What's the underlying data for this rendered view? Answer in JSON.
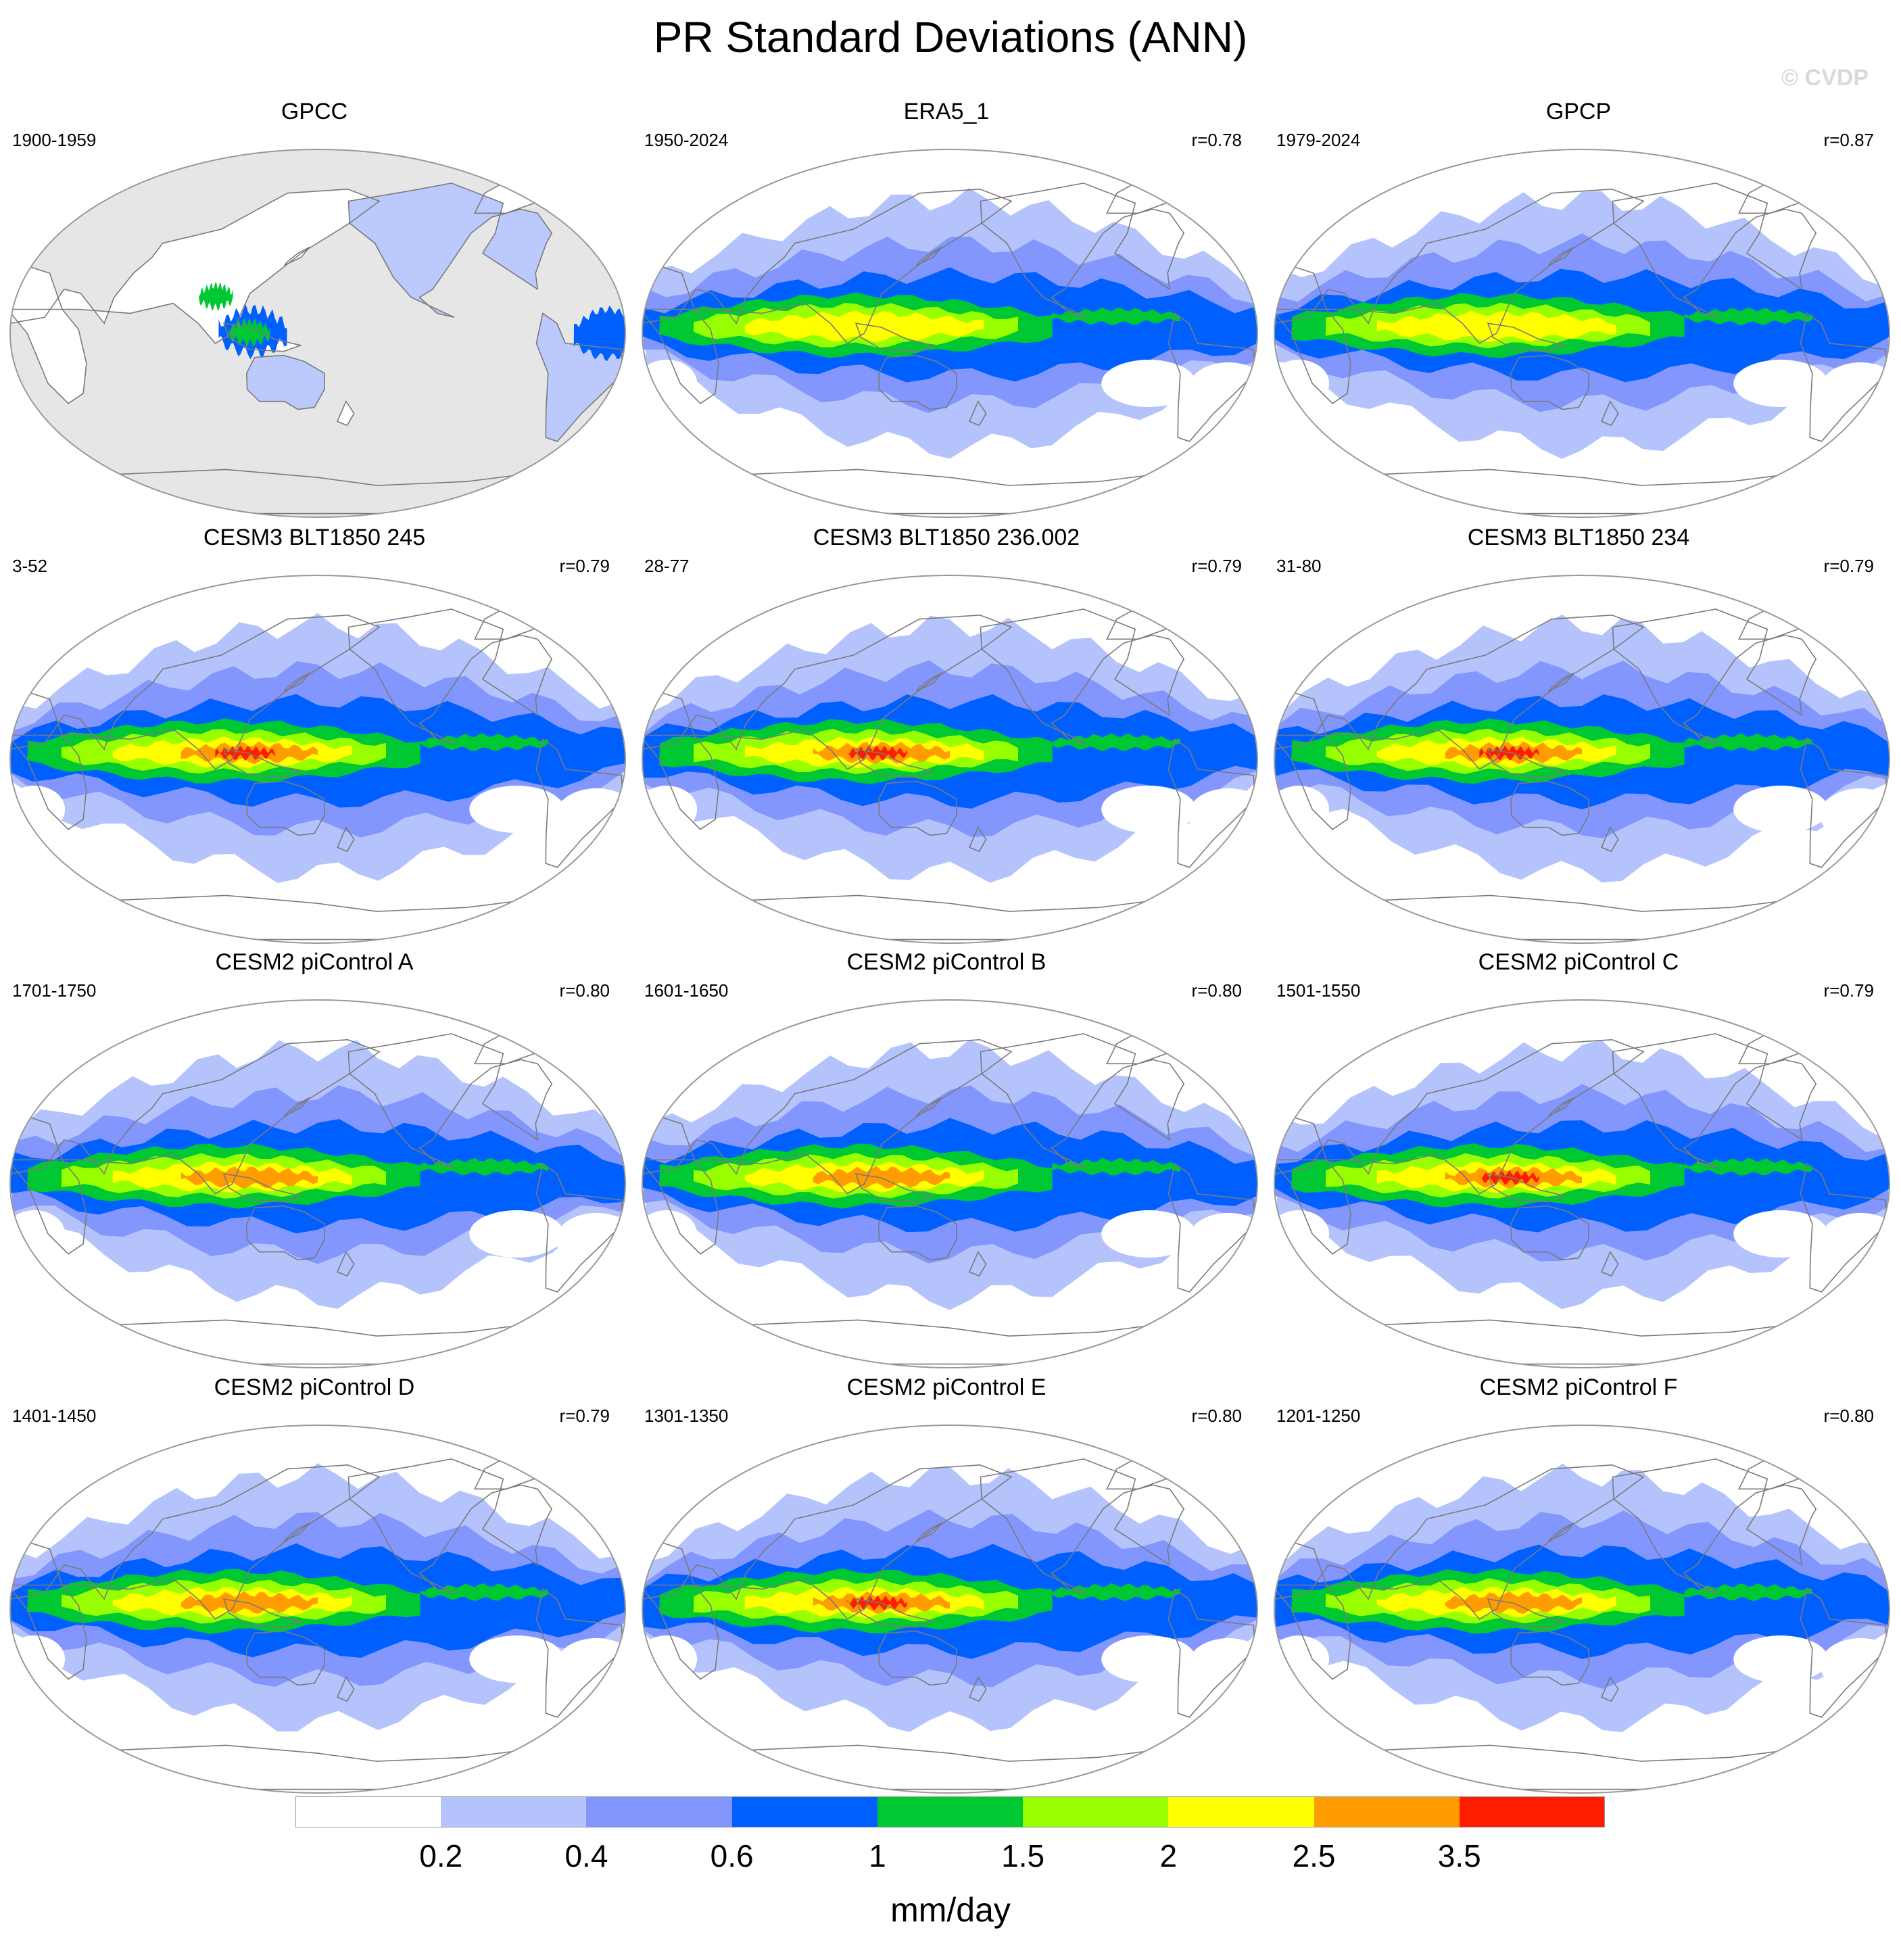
{
  "figure": {
    "title": "PR Standard Deviations (ANN)",
    "watermark": "© CVDP"
  },
  "colors": {
    "ocean_background": "#ffffff",
    "land_mask": "#e6e6e6",
    "coastline": "#7a7a7a",
    "frame": "#999999"
  },
  "panels": [
    {
      "title": "GPCC",
      "years": "1900-1959",
      "r": "",
      "land_only": true,
      "peak_level": 5
    },
    {
      "title": "ERA5_1",
      "years": "1950-2024",
      "r": "r=0.78",
      "land_only": false,
      "peak_level": 6
    },
    {
      "title": "GPCP",
      "years": "1979-2024",
      "r": "r=0.87",
      "land_only": false,
      "peak_level": 6
    },
    {
      "title": "CESM3 BLT1850 245",
      "years": "3-52",
      "r": "r=0.79",
      "land_only": false,
      "peak_level": 8
    },
    {
      "title": "CESM3 BLT1850 236.002",
      "years": "28-77",
      "r": "r=0.79",
      "land_only": false,
      "peak_level": 8
    },
    {
      "title": "CESM3 BLT1850 234",
      "years": "31-80",
      "r": "r=0.79",
      "land_only": false,
      "peak_level": 8
    },
    {
      "title": "CESM2 piControl A",
      "years": "1701-1750",
      "r": "r=0.80",
      "land_only": false,
      "peak_level": 7
    },
    {
      "title": "CESM2 piControl B",
      "years": "1601-1650",
      "r": "r=0.80",
      "land_only": false,
      "peak_level": 7
    },
    {
      "title": "CESM2 piControl C",
      "years": "1501-1550",
      "r": "r=0.79",
      "land_only": false,
      "peak_level": 8
    },
    {
      "title": "CESM2 piControl D",
      "years": "1401-1450",
      "r": "r=0.79",
      "land_only": false,
      "peak_level": 7
    },
    {
      "title": "CESM2 piControl E",
      "years": "1301-1350",
      "r": "r=0.80",
      "land_only": false,
      "peak_level": 8
    },
    {
      "title": "CESM2 piControl F",
      "years": "1201-1250",
      "r": "r=0.80",
      "land_only": false,
      "peak_level": 7
    }
  ],
  "colorbar": {
    "colors": [
      "#ffffff",
      "#b4c3fc",
      "#8296fd",
      "#0060ff",
      "#00c833",
      "#98ff00",
      "#ffff00",
      "#ff9c00",
      "#ff1d00"
    ],
    "labels": [
      "0.2",
      "0.4",
      "0.6",
      "1",
      "1.5",
      "2",
      "2.5",
      "3.5"
    ],
    "units": "mm/day"
  }
}
